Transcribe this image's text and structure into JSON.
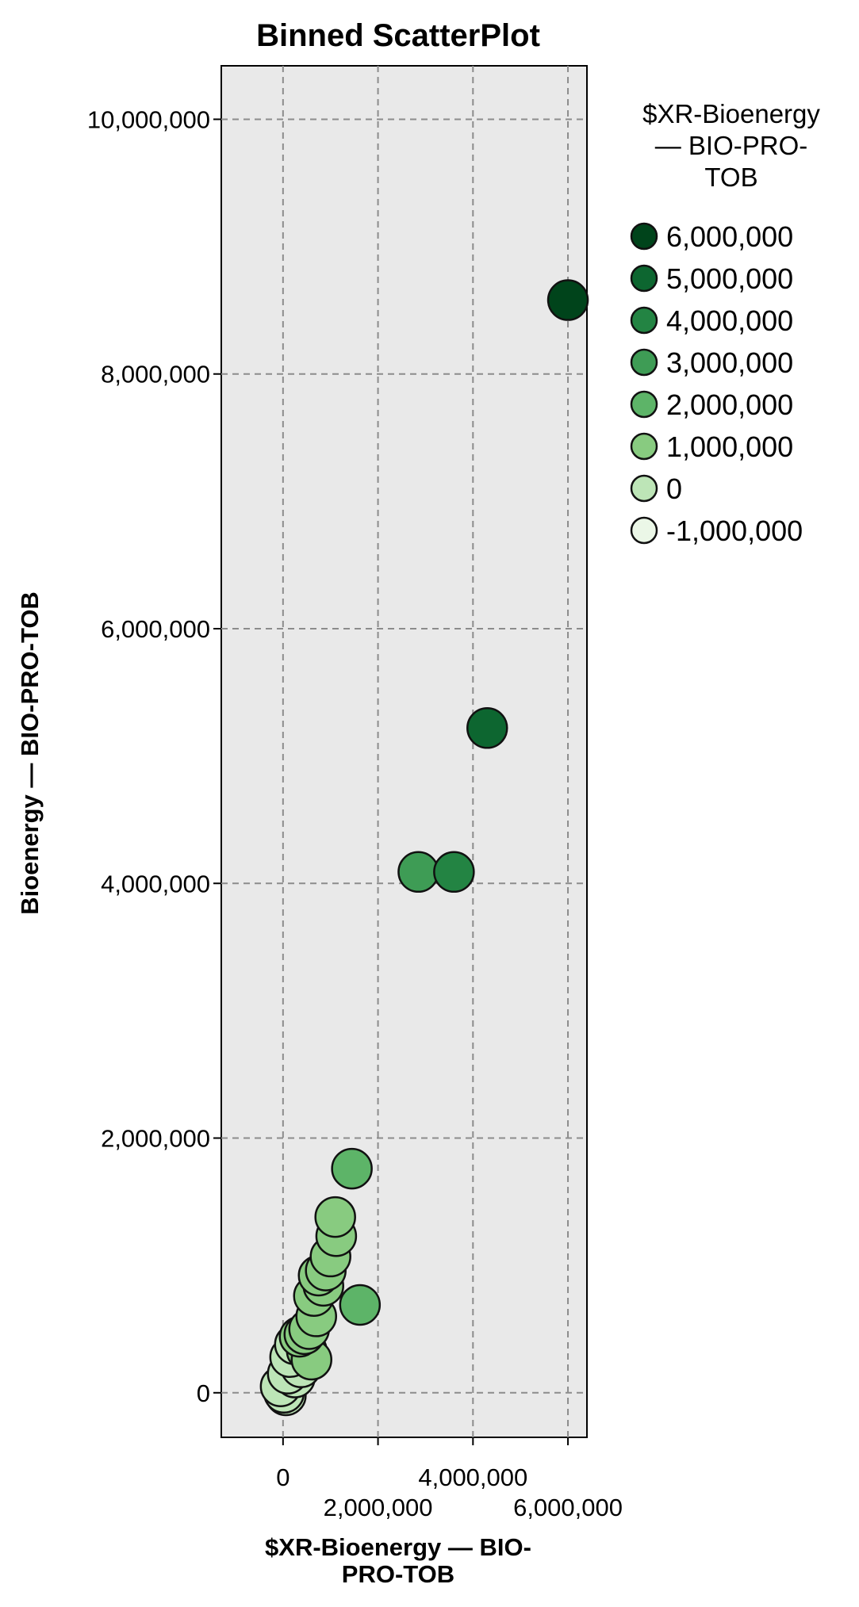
{
  "chart_data": {
    "type": "scatter",
    "title": "Binned ScatterPlot",
    "xlabel": [
      "$XR-Bioenergy — BIO-",
      "PRO-TOB"
    ],
    "ylabel": "Bioenergy — BIO-PRO-TOB",
    "xlim": [
      -1300000,
      6400000
    ],
    "ylim": [
      -350000,
      10420000
    ],
    "x_ticks": [
      {
        "value": 0,
        "label": "0",
        "row": 0
      },
      {
        "value": 2000000,
        "label": "2,000,000",
        "row": 1
      },
      {
        "value": 4000000,
        "label": "4,000,000",
        "row": 0
      },
      {
        "value": 6000000,
        "label": "6,000,000",
        "row": 1
      }
    ],
    "y_ticks": [
      {
        "value": 0,
        "label": "0"
      },
      {
        "value": 2000000,
        "label": "2,000,000"
      },
      {
        "value": 4000000,
        "label": "4,000,000"
      },
      {
        "value": 6000000,
        "label": "6,000,000"
      },
      {
        "value": 8000000,
        "label": "8,000,000"
      },
      {
        "value": 10000000,
        "label": "10,000,000"
      }
    ],
    "grid": true,
    "legend": {
      "title": [
        "$XR-Bioenergy",
        "— BIO-PRO-",
        "TOB"
      ],
      "placement": "top-right",
      "entries": [
        {
          "label": "6,000,000",
          "color": "#00441b"
        },
        {
          "label": "5,000,000",
          "color": "#0d6630"
        },
        {
          "label": "4,000,000",
          "color": "#238443"
        },
        {
          "label": "3,000,000",
          "color": "#3e9c55"
        },
        {
          "label": "2,000,000",
          "color": "#5db468"
        },
        {
          "label": "1,000,000",
          "color": "#88cb80"
        },
        {
          "label": "0",
          "color": "#bde5b7"
        },
        {
          "label": "-1,000,000",
          "color": "#ebf7e7"
        }
      ]
    },
    "colors": {
      "plot_background": "#e9e9e9",
      "gridline": "#8c8c8c",
      "marker_stroke": "#111111"
    },
    "points": [
      {
        "x": 6000000,
        "y": 8580000,
        "color": "#00441b"
      },
      {
        "x": 4300000,
        "y": 5220000,
        "color": "#0d6630"
      },
      {
        "x": 3600000,
        "y": 4090000,
        "color": "#238443"
      },
      {
        "x": 2850000,
        "y": 4090000,
        "color": "#3e9c55"
      },
      {
        "x": 1450000,
        "y": 1760000,
        "color": "#5db468"
      },
      {
        "x": 1620000,
        "y": 690000,
        "color": "#5db468"
      },
      {
        "x": 1100000,
        "y": 1380000,
        "color": "#88cb80"
      },
      {
        "x": 1120000,
        "y": 1230000,
        "color": "#88cb80"
      },
      {
        "x": 1000000,
        "y": 1070000,
        "color": "#88cb80"
      },
      {
        "x": 900000,
        "y": 960000,
        "color": "#88cb80"
      },
      {
        "x": 750000,
        "y": 920000,
        "color": "#88cb80"
      },
      {
        "x": 850000,
        "y": 840000,
        "color": "#88cb80"
      },
      {
        "x": 650000,
        "y": 760000,
        "color": "#88cb80"
      },
      {
        "x": 700000,
        "y": 600000,
        "color": "#88cb80"
      },
      {
        "x": 550000,
        "y": 500000,
        "color": "#88cb80"
      },
      {
        "x": 450000,
        "y": 460000,
        "color": "#88cb80"
      },
      {
        "x": 350000,
        "y": 440000,
        "color": "#88cb80"
      },
      {
        "x": 600000,
        "y": 260000,
        "color": "#88cb80"
      },
      {
        "x": 500000,
        "y": 330000,
        "color": "#88cb80"
      },
      {
        "x": 250000,
        "y": 380000,
        "color": "#bde5b7"
      },
      {
        "x": 150000,
        "y": 280000,
        "color": "#bde5b7"
      },
      {
        "x": 380000,
        "y": 200000,
        "color": "#bde5b7"
      },
      {
        "x": 400000,
        "y": 340000,
        "color": "#bde5b7"
      },
      {
        "x": 100000,
        "y": 150000,
        "color": "#bde5b7"
      },
      {
        "x": 250000,
        "y": 120000,
        "color": "#bde5b7"
      },
      {
        "x": -50000,
        "y": 50000,
        "color": "#bde5b7"
      },
      {
        "x": 20000,
        "y": 0,
        "color": "#bde5b7"
      },
      {
        "x": 60000,
        "y": -20000,
        "color": "#bde5b7"
      }
    ]
  }
}
